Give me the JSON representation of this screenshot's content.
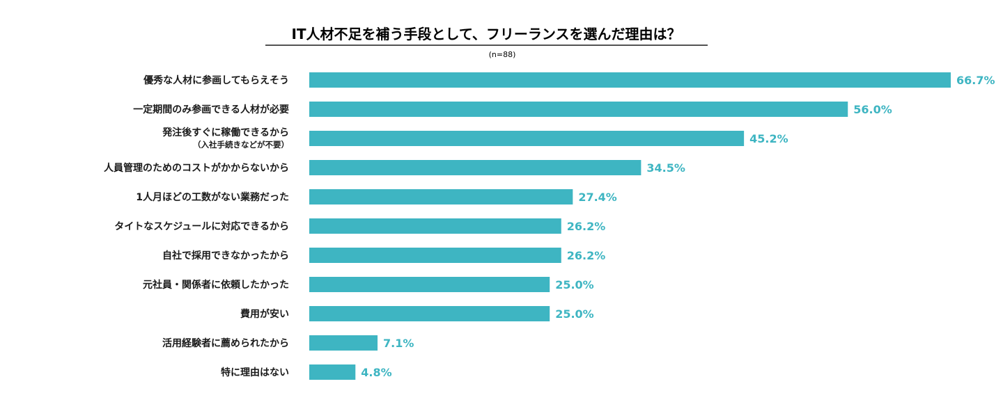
{
  "chart_data": {
    "type": "bar",
    "orientation": "horizontal",
    "title": "IT人材不足を補う手段として、フリーランスを選んだ理由は？",
    "subtitle": "(n=88)",
    "unit": "%",
    "xlim": [
      0,
      66.7
    ],
    "color": "#3eb5c2",
    "categories": [
      {
        "label": "優秀な人材に参画してもらえそう",
        "sub": ""
      },
      {
        "label": "一定期間のみ参画できる人材が必要",
        "sub": ""
      },
      {
        "label": "発注後すぐに稼働できるから",
        "sub": "（入社手続きなどが不要）"
      },
      {
        "label": "人員管理のためのコストがかからないから",
        "sub": ""
      },
      {
        "label": "1人月ほどの工数がない業務だった",
        "sub": ""
      },
      {
        "label": "タイトなスケジュールに対応できるから",
        "sub": ""
      },
      {
        "label": "自社で採用できなかったから",
        "sub": ""
      },
      {
        "label": "元社員・関係者に依頼したかった",
        "sub": ""
      },
      {
        "label": "費用が安い",
        "sub": ""
      },
      {
        "label": "活用経験者に薦められたから",
        "sub": ""
      },
      {
        "label": "特に理由はない",
        "sub": ""
      }
    ],
    "values": [
      66.7,
      56.0,
      45.2,
      34.5,
      27.4,
      26.2,
      26.2,
      25.0,
      25.0,
      7.1,
      4.8
    ],
    "value_labels": [
      "66.7%",
      "56.0%",
      "45.2%",
      "34.5%",
      "27.4%",
      "26.2%",
      "26.2%",
      "25.0%",
      "25.0%",
      "7.1%",
      "4.8%"
    ]
  }
}
